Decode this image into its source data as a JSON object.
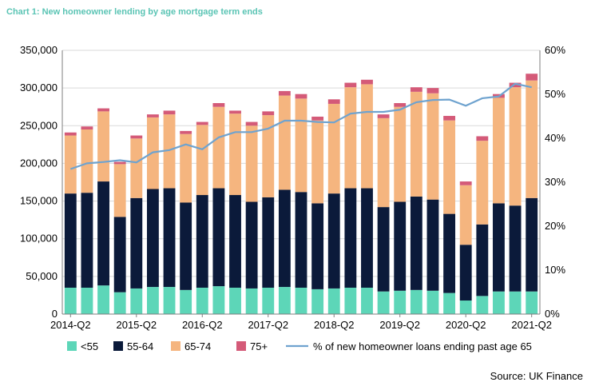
{
  "title": "Chart 1: New homeowner lending by age mortgage term ends",
  "source": "Source: UK Finance",
  "chart_data": {
    "type": "bar",
    "stacked": true,
    "categories": [
      "2014-Q2",
      "2014-Q3",
      "2014-Q4",
      "2015-Q1",
      "2015-Q2",
      "2015-Q3",
      "2015-Q4",
      "2016-Q1",
      "2016-Q2",
      "2016-Q3",
      "2016-Q4",
      "2017-Q1",
      "2017-Q2",
      "2017-Q3",
      "2017-Q4",
      "2018-Q1",
      "2018-Q2",
      "2018-Q3",
      "2018-Q4",
      "2019-Q1",
      "2019-Q2",
      "2019-Q3",
      "2019-Q4",
      "2020-Q1",
      "2020-Q2",
      "2020-Q3",
      "2020-Q4",
      "2021-Q1",
      "2021-Q2"
    ],
    "x_tick_labels": [
      {
        "index": 0,
        "label": "2014-Q2"
      },
      {
        "index": 4,
        "label": "2015-Q2"
      },
      {
        "index": 8,
        "label": "2016-Q2"
      },
      {
        "index": 12,
        "label": "2017-Q2"
      },
      {
        "index": 16,
        "label": "2018-Q2"
      },
      {
        "index": 20,
        "label": "2019-Q2"
      },
      {
        "index": 24,
        "label": "2020-Q2"
      },
      {
        "index": 28,
        "label": "2021-Q2"
      }
    ],
    "series": [
      {
        "name": "<55",
        "color": "#5dd6b8",
        "values": [
          35000,
          35000,
          38000,
          29000,
          34000,
          36000,
          36000,
          32000,
          35000,
          37000,
          35000,
          34000,
          35000,
          36000,
          35000,
          33000,
          34000,
          35000,
          35000,
          30000,
          31000,
          32000,
          31000,
          28000,
          18000,
          24000,
          30000,
          30000,
          30000
        ]
      },
      {
        "name": "55-64",
        "color": "#0b1a3a",
        "values": [
          125000,
          126000,
          138000,
          100000,
          120000,
          130000,
          131000,
          116000,
          123000,
          130000,
          123000,
          115000,
          120000,
          129000,
          127000,
          114000,
          126000,
          132000,
          132000,
          112000,
          118000,
          124000,
          121000,
          105000,
          74000,
          95000,
          117000,
          114000,
          124000
        ]
      },
      {
        "name": "65-74",
        "color": "#f5b57f",
        "values": [
          77000,
          84000,
          93000,
          70000,
          79000,
          95000,
          98000,
          91000,
          93000,
          108000,
          108000,
          101000,
          109000,
          125000,
          124000,
          110000,
          119000,
          134000,
          138000,
          118000,
          126000,
          139000,
          141000,
          124000,
          79000,
          111000,
          140000,
          157000,
          156000
        ]
      },
      {
        "name": "75+",
        "color": "#d45a78",
        "values": [
          4000,
          4000,
          4000,
          3000,
          4000,
          4000,
          5000,
          4000,
          4000,
          5000,
          4000,
          5000,
          5000,
          6000,
          6000,
          5000,
          6000,
          6000,
          6000,
          5000,
          5000,
          6000,
          7000,
          6000,
          5000,
          6000,
          5000,
          6000,
          9000
        ]
      }
    ],
    "line": {
      "name": "% of new homeowner loans ending past age 65",
      "color": "#6fa3cf",
      "axis": "right",
      "values": [
        33,
        34.3,
        34.6,
        35,
        34.5,
        36.8,
        37.3,
        38.6,
        37.5,
        40.2,
        41.4,
        41.4,
        42.2,
        44,
        44,
        43.7,
        43.6,
        45.6,
        46,
        46,
        46.5,
        48.2,
        48.7,
        48.8,
        47.4,
        49.1,
        49.5,
        52.4,
        51.6
      ]
    },
    "y_left": {
      "min": 0,
      "max": 350000,
      "step": 50000,
      "tick_labels": [
        "0",
        "50,000",
        "100,000",
        "150,000",
        "200,000",
        "250,000",
        "300,000",
        "350,000"
      ]
    },
    "y_right": {
      "min": 0,
      "max": 60,
      "step": 10,
      "tick_labels": [
        "0%",
        "10%",
        "20%",
        "30%",
        "40%",
        "50%",
        "60%"
      ]
    },
    "gridlines": true,
    "legend_position": "bottom"
  }
}
